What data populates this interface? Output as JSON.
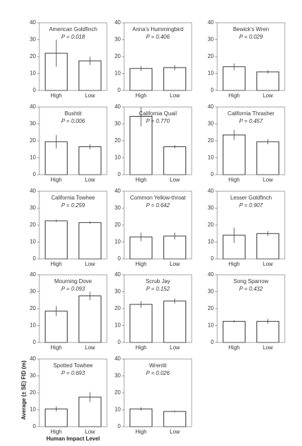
{
  "chart_data": [
    {
      "type": "bar",
      "title": "American Goldfinch",
      "annotation": "P = 0.018",
      "categories": [
        "High",
        "Low"
      ],
      "values": [
        22,
        17.5
      ],
      "errors": [
        8,
        2.5
      ],
      "ylim": [
        0,
        40
      ],
      "yticks": [
        0,
        10,
        20,
        30,
        40
      ]
    },
    {
      "type": "bar",
      "title": "Anna's Hummingbird",
      "annotation": "P = 0.406",
      "categories": [
        "High",
        "Low"
      ],
      "values": [
        13,
        13.5
      ],
      "errors": [
        1.5,
        1.5
      ],
      "ylim": [
        0,
        40
      ],
      "yticks": [
        0,
        10,
        20,
        30,
        40
      ]
    },
    {
      "type": "bar",
      "title": "Bewick's Wren",
      "annotation": "P = 0.029",
      "categories": [
        "High",
        "Low"
      ],
      "values": [
        14,
        11
      ],
      "errors": [
        2,
        1
      ],
      "ylim": [
        0,
        40
      ],
      "yticks": [
        0,
        10,
        20,
        30,
        40
      ]
    },
    {
      "type": "bar",
      "title": "Bushtit",
      "annotation": "P = 0.006",
      "categories": [
        "High",
        "Low"
      ],
      "values": [
        19.5,
        16.5
      ],
      "errors": [
        4,
        1.5
      ],
      "ylim": [
        0,
        40
      ],
      "yticks": [
        0,
        10,
        20,
        30,
        40
      ]
    },
    {
      "type": "bar",
      "title": "California Quail",
      "annotation": "P = 0.770",
      "categories": [
        "High",
        "Low"
      ],
      "values": [
        34.5,
        16.5
      ],
      "errors": [
        6,
        1
      ],
      "ylim": [
        0,
        40
      ],
      "yticks": [
        0,
        10,
        20,
        30,
        40
      ]
    },
    {
      "type": "bar",
      "title": "California Thrasher",
      "annotation": "P = 0.457",
      "categories": [
        "High",
        "Low"
      ],
      "values": [
        23.5,
        19.5
      ],
      "errors": [
        3,
        1.5
      ],
      "ylim": [
        0,
        40
      ],
      "yticks": [
        0,
        10,
        20,
        30,
        40
      ]
    },
    {
      "type": "bar",
      "title": "California Towhee",
      "annotation": "P = 0.259",
      "categories": [
        "High",
        "Low"
      ],
      "values": [
        22.5,
        21.5
      ],
      "errors": [
        0.7,
        0.7
      ],
      "ylim": [
        0,
        40
      ],
      "yticks": [
        0,
        10,
        20,
        30,
        40
      ]
    },
    {
      "type": "bar",
      "title": "Common Yellow-throat",
      "annotation": "P = 0.642",
      "categories": [
        "High",
        "Low"
      ],
      "values": [
        13,
        13.5
      ],
      "errors": [
        2.5,
        2
      ],
      "ylim": [
        0,
        40
      ],
      "yticks": [
        0,
        10,
        20,
        30,
        40
      ]
    },
    {
      "type": "bar",
      "title": "Lesser Goldfinch",
      "annotation": "P = 0.907",
      "categories": [
        "High",
        "Low"
      ],
      "values": [
        14,
        15
      ],
      "errors": [
        4.5,
        1.5
      ],
      "ylim": [
        0,
        40
      ],
      "yticks": [
        0,
        10,
        20,
        30,
        40
      ]
    },
    {
      "type": "bar",
      "title": "Mourning Dove",
      "annotation": "P = 0.093",
      "categories": [
        "High",
        "Low"
      ],
      "values": [
        18.5,
        27.5
      ],
      "errors": [
        3,
        2.5
      ],
      "ylim": [
        0,
        40
      ],
      "yticks": [
        0,
        10,
        20,
        30,
        40
      ]
    },
    {
      "type": "bar",
      "title": "Scrub Jay",
      "annotation": "P = 0.152",
      "categories": [
        "High",
        "Low"
      ],
      "values": [
        22.5,
        24.5
      ],
      "errors": [
        2,
        1.5
      ],
      "ylim": [
        0,
        40
      ],
      "yticks": [
        0,
        10,
        20,
        30,
        40
      ]
    },
    {
      "type": "bar",
      "title": "Song Sparrow",
      "annotation": "P = 0.432",
      "categories": [
        "High",
        "Low"
      ],
      "values": [
        12.5,
        12.5
      ],
      "errors": [
        0.7,
        1.5
      ],
      "ylim": [
        0,
        40
      ],
      "yticks": [
        0,
        10,
        20,
        30,
        40
      ]
    },
    {
      "type": "bar",
      "title": "Spotted Towhee",
      "annotation": "P = 0.693",
      "categories": [
        "High",
        "Low"
      ],
      "values": [
        10.5,
        17.5
      ],
      "errors": [
        1.5,
        3
      ],
      "ylim": [
        0,
        40
      ],
      "yticks": [
        0,
        10,
        20,
        30,
        40
      ],
      "y_label": "Average (± SE) FID (m)",
      "x_label": "Human Impact Level"
    },
    {
      "type": "bar",
      "title": "Wrentit",
      "annotation": "P = 0.026",
      "categories": [
        "High",
        "Low"
      ],
      "values": [
        10.5,
        9
      ],
      "errors": [
        1,
        0.5
      ],
      "ylim": [
        0,
        40
      ],
      "yticks": [
        0,
        10,
        20,
        30,
        40
      ]
    }
  ]
}
